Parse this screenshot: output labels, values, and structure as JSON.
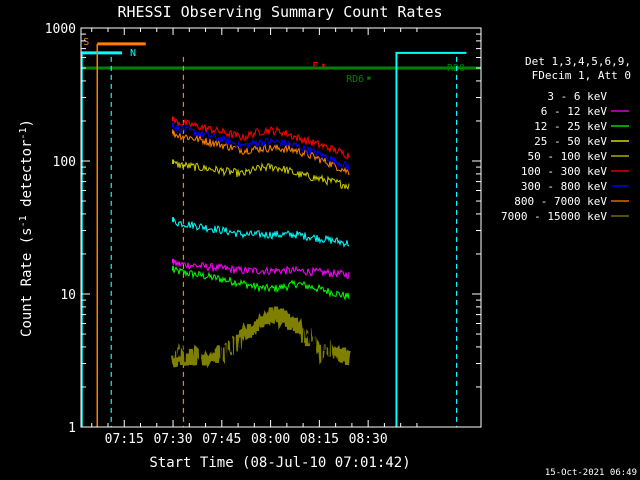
{
  "chart_data": {
    "type": "line",
    "title": "RHESSI Observing Summary Count Rates",
    "xlabel": "Start Time (08-Jul-10 07:01:42)",
    "ylabel_main": "Count Rate (s",
    "ylabel_sup1": "-1",
    "ylabel_mid": " detector",
    "ylabel_sup2": "-1",
    "ylabel_end": ")",
    "x_range_min": [
      0,
      123
    ],
    "x_ticks": [
      {
        "label": "07:15",
        "min": 13.3
      },
      {
        "label": "07:30",
        "min": 28.3
      },
      {
        "label": "07:45",
        "min": 43.3
      },
      {
        "label": "08:00",
        "min": 58.3
      },
      {
        "label": "08:15",
        "min": 73.3
      },
      {
        "label": "08:30",
        "min": 88.3
      }
    ],
    "y_scale": "log",
    "ylim": [
      1,
      1000
    ],
    "y_ticks": [
      {
        "label": "1",
        "value": 1
      },
      {
        "label": "10",
        "value": 10
      },
      {
        "label": "100",
        "value": 100
      },
      {
        "label": "1000",
        "value": 1000
      }
    ],
    "legend_header": [
      "Det 1,3,4,5,6,9,",
      "FDecim 1, Att 0"
    ],
    "series": [
      {
        "name": "3 - 6 keV",
        "color": "#000000"
      },
      {
        "name": "6 - 12 keV",
        "color": "#ff00ff"
      },
      {
        "name": "12 - 25 keV",
        "color": "#00ff00"
      },
      {
        "name": "25 - 50 keV",
        "color": "#ffff00"
      },
      {
        "name": "50 - 100 keV",
        "color": "#cccc00"
      },
      {
        "name": "100 - 300 keV",
        "color": "#ff0000"
      },
      {
        "name": "300 - 800 keV",
        "color": "#0000ff"
      },
      {
        "name": "800 - 7000 keV",
        "color": "#ff8000"
      },
      {
        "name": "7000 - 15000 keV",
        "color": "#808000"
      }
    ],
    "data_segment_min": [
      28.3,
      82.5
    ],
    "series_profiles": [
      {
        "key": "red",
        "color": "#ff0000",
        "start": 200,
        "mid": 150,
        "bump": 170,
        "end": 110
      },
      {
        "key": "blue",
        "color": "#0000ff",
        "start": 180,
        "mid": 130,
        "bump": 140,
        "end": 90
      },
      {
        "key": "orange",
        "color": "#ff8000",
        "start": 160,
        "mid": 120,
        "bump": 125,
        "end": 82
      },
      {
        "key": "yellow",
        "color": "#cccc00",
        "start": 95,
        "mid": 80,
        "bump": 90,
        "end": 65
      },
      {
        "key": "cyan",
        "color": "#00ffff",
        "start": 35,
        "mid": 28,
        "bump": 28,
        "end": 24
      },
      {
        "key": "magenta",
        "color": "#ff00ff",
        "start": 17,
        "mid": 15,
        "bump": 15,
        "end": 14
      },
      {
        "key": "green",
        "color": "#00ff00",
        "start": 15,
        "mid": 12,
        "bump": 11,
        "end": 9.5
      }
    ],
    "flags": [
      {
        "label": "S",
        "color": "#ff8000",
        "x_start": 5.0,
        "x_end": 19.9,
        "level": 760
      },
      {
        "label": "N",
        "color": "#00ffff",
        "x_start": 0,
        "x_end": 12.6,
        "level": 650
      },
      {
        "label": "F",
        "color": "#ff0000",
        "x_start": 74.2,
        "x_end": 74.9,
        "level": 525
      },
      {
        "label": "RD0",
        "color": "#008000",
        "x_start": 0,
        "x_end": 123,
        "level": 500
      },
      {
        "label": "RD6",
        "color": "#008000",
        "x_start": 88.0,
        "x_end": 89.0,
        "level": 420
      }
    ],
    "vertical_markers": [
      {
        "x_min": 9.3,
        "color": "#00ffff",
        "style": "dashed"
      },
      {
        "x_min": 31.5,
        "color": "#ff8000",
        "style": "dashed"
      },
      {
        "x_min": 115.5,
        "color": "#00ffff",
        "style": "dashed"
      }
    ],
    "footer_date": "15-Oct-2021 06:49"
  }
}
